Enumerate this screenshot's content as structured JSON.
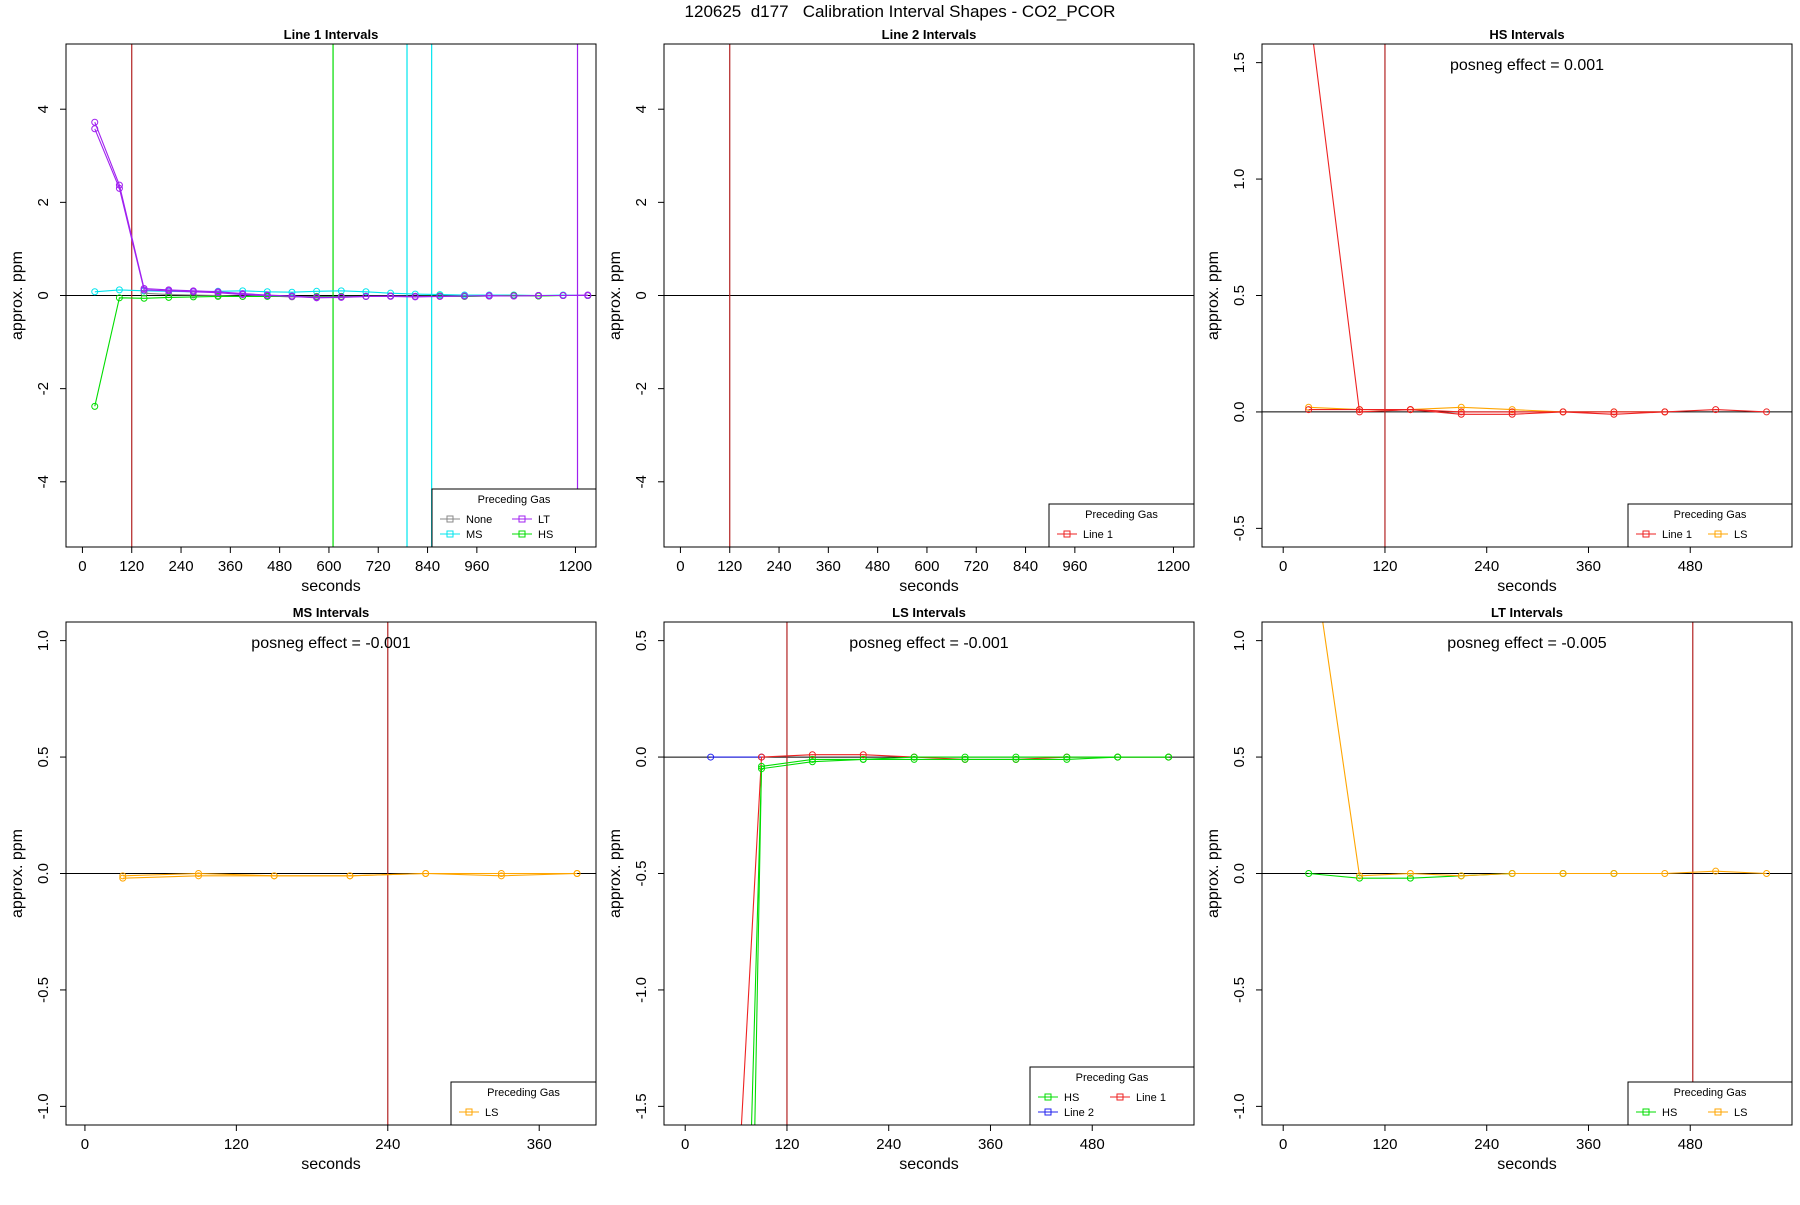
{
  "figure": {
    "title": "120625  d177   Calibration Interval Shapes - CO2_PCOR",
    "colors": {
      "None": "#888888",
      "LT": "#a020f0",
      "MS": "#00e5ee",
      "HS": "#00dd00",
      "Line 1": "#ee2222",
      "Line 2": "#2222ee",
      "LS": "#ffa500",
      "marker_line": "#b22222",
      "axis": "#000000"
    }
  },
  "chart_data": [
    {
      "type": "line",
      "title": "Line 1 Intervals",
      "xlabel": "seconds",
      "ylabel": "approx. ppm",
      "xlim": [
        -40,
        1250
      ],
      "ylim": [
        -5.4,
        5.4
      ],
      "xticks": [
        0,
        120,
        240,
        360,
        480,
        600,
        720,
        840,
        960,
        1200
      ],
      "yticks": [
        -4,
        -2,
        0,
        2,
        4
      ],
      "annotation": "",
      "vlines": [
        {
          "x": 120,
          "color": "#b22222"
        },
        {
          "x": 610,
          "color": "#00dd00"
        },
        {
          "x": 790,
          "color": "#00e5ee"
        },
        {
          "x": 850,
          "color": "#00e5ee"
        },
        {
          "x": 1205,
          "color": "#a020f0"
        }
      ],
      "legend": {
        "title": "Preceding Gas",
        "placement": "bottom-right",
        "cols": 2,
        "entries": [
          "None",
          "LT",
          "MS",
          "HS"
        ]
      },
      "series": [
        {
          "name": "MS",
          "x": [
            30,
            90,
            150,
            210,
            270,
            330,
            390,
            450,
            510,
            570,
            630,
            690,
            750,
            810,
            870,
            930,
            990,
            1050,
            1110,
            1170,
            1230
          ],
          "values": [
            0.08,
            0.12,
            0.1,
            0.09,
            0.08,
            0.09,
            0.1,
            0.08,
            0.07,
            0.09,
            0.1,
            0.08,
            0.05,
            0.03,
            0.02,
            0.01,
            0.01,
            0.01,
            0.0,
            0.01,
            0.0
          ]
        },
        {
          "name": "None",
          "x": [
            150,
            210,
            270,
            330,
            390,
            450,
            510,
            570,
            630,
            690,
            750,
            810,
            870,
            930,
            990,
            1050,
            1110,
            1170,
            1230
          ],
          "values": [
            0.05,
            0.02,
            0.01,
            0.0,
            -0.02,
            -0.01,
            -0.03,
            -0.02,
            -0.03,
            -0.02,
            -0.01,
            -0.02,
            -0.01,
            -0.02,
            -0.01,
            0.0,
            -0.01,
            0.0,
            0.0
          ]
        },
        {
          "name": "HS",
          "x": [
            30,
            90,
            150,
            210,
            270,
            330,
            390,
            450,
            510,
            570,
            630,
            690,
            750,
            810,
            870,
            930,
            990,
            1050,
            1110,
            1170,
            1230
          ],
          "values": [
            -2.38,
            -0.05,
            -0.06,
            -0.04,
            -0.03,
            -0.02,
            -0.02,
            -0.02,
            -0.02,
            -0.03,
            -0.02,
            -0.02,
            -0.01,
            -0.02,
            -0.01,
            -0.02,
            -0.01,
            0.0,
            -0.01,
            0.0,
            0.0
          ]
        },
        {
          "name": "LT",
          "x": [
            30,
            90,
            150,
            210,
            270,
            330,
            390,
            450,
            510,
            570,
            630,
            690,
            750,
            810,
            870,
            930,
            990,
            1050,
            1110,
            1170,
            1230
          ],
          "values": [
            3.72,
            2.37,
            0.15,
            0.12,
            0.1,
            0.08,
            0.04,
            0.01,
            -0.01,
            -0.04,
            -0.03,
            -0.02,
            -0.01,
            -0.02,
            -0.02,
            -0.01,
            0.0,
            -0.01,
            0.0,
            0.0,
            0.01
          ]
        },
        {
          "name": "LT",
          "x": [
            30,
            90,
            150,
            210,
            270,
            330,
            390,
            450,
            510,
            570,
            630,
            690,
            750,
            810,
            870,
            930,
            990,
            1050,
            1110,
            1170,
            1230
          ],
          "values": [
            3.58,
            2.3,
            0.12,
            0.1,
            0.08,
            0.06,
            0.02,
            0.0,
            -0.02,
            -0.05,
            -0.04,
            -0.02,
            -0.02,
            -0.03,
            -0.02,
            -0.01,
            -0.01,
            -0.01,
            0.0,
            0.0,
            0.0
          ]
        }
      ]
    },
    {
      "type": "line",
      "title": "Line 2 Intervals",
      "xlabel": "seconds",
      "ylabel": "approx. ppm",
      "xlim": [
        -40,
        1250
      ],
      "ylim": [
        -5.4,
        5.4
      ],
      "xticks": [
        0,
        120,
        240,
        360,
        480,
        600,
        720,
        840,
        960,
        1200
      ],
      "yticks": [
        -4,
        -2,
        0,
        2,
        4
      ],
      "annotation": "",
      "vlines": [
        {
          "x": 120,
          "color": "#b22222"
        }
      ],
      "legend": {
        "title": "Preceding Gas",
        "placement": "bottom-right",
        "cols": 1,
        "entries": [
          "Line 1"
        ]
      },
      "series": []
    },
    {
      "type": "line",
      "title": "HS Intervals",
      "xlabel": "seconds",
      "ylabel": "approx. ppm",
      "xlim": [
        -25,
        600
      ],
      "ylim": [
        -0.58,
        1.58
      ],
      "xticks": [
        0,
        120,
        240,
        360,
        480
      ],
      "yticks": [
        -0.5,
        0.0,
        0.5,
        1.0,
        1.5
      ],
      "annotation": "posneg effect = 0.001",
      "vlines": [
        {
          "x": 120,
          "color": "#b22222"
        }
      ],
      "legend": {
        "title": "Preceding Gas",
        "placement": "bottom-right",
        "cols": 2,
        "entries": [
          "Line 1",
          "LS"
        ]
      },
      "series": [
        {
          "name": "LS",
          "x": [
            30,
            90,
            150,
            210,
            270,
            330,
            390,
            450
          ],
          "values": [
            0.02,
            0.01,
            0.01,
            0.02,
            0.01,
            0.0,
            0.0,
            0.0
          ]
        },
        {
          "name": "Line 1",
          "x": [
            30,
            90,
            150,
            210,
            270,
            330,
            390,
            450,
            510,
            570
          ],
          "values": [
            1.75,
            0.0,
            0.01,
            -0.01,
            -0.01,
            0.0,
            -0.01,
            0.0,
            0.01,
            0.0
          ]
        },
        {
          "name": "Line 1",
          "x": [
            30,
            90,
            150,
            210,
            270,
            330,
            390,
            450
          ],
          "values": [
            0.01,
            0.01,
            0.01,
            0.0,
            0.0,
            0.0,
            0.0,
            0.0
          ]
        }
      ]
    },
    {
      "type": "line",
      "title": "MS Intervals",
      "xlabel": "seconds",
      "ylabel": "approx. ppm",
      "xlim": [
        -15,
        405
      ],
      "ylim": [
        -1.08,
        1.08
      ],
      "xticks": [
        0,
        120,
        240,
        360
      ],
      "yticks": [
        -1.0,
        -0.5,
        0.0,
        0.5,
        1.0
      ],
      "annotation": "posneg effect = -0.001",
      "vlines": [
        {
          "x": 240,
          "color": "#b22222"
        }
      ],
      "legend": {
        "title": "Preceding Gas",
        "placement": "bottom-right",
        "cols": 1,
        "entries": [
          "LS"
        ]
      },
      "series": [
        {
          "name": "LS",
          "x": [
            30,
            90,
            150,
            210,
            270,
            330,
            390
          ],
          "values": [
            -0.02,
            -0.01,
            -0.01,
            -0.01,
            0.0,
            0.0,
            0.0
          ]
        },
        {
          "name": "LS",
          "x": [
            30,
            90,
            150,
            210,
            270,
            330,
            390
          ],
          "values": [
            -0.01,
            0.0,
            -0.01,
            -0.01,
            0.0,
            -0.01,
            0.0
          ]
        }
      ]
    },
    {
      "type": "line",
      "title": "LS Intervals",
      "xlabel": "seconds",
      "ylabel": "approx. ppm",
      "xlim": [
        -25,
        600
      ],
      "ylim": [
        -1.58,
        0.58
      ],
      "xticks": [
        0,
        120,
        240,
        360,
        480
      ],
      "yticks": [
        -1.5,
        -1.0,
        -0.5,
        0.0,
        0.5
      ],
      "annotation": "posneg effect = -0.001",
      "vlines": [
        {
          "x": 120,
          "color": "#b22222"
        }
      ],
      "legend": {
        "title": "Preceding Gas",
        "placement": "bottom-right",
        "cols": 2,
        "entries": [
          "HS",
          "Line 1",
          "Line 2"
        ]
      },
      "series": [
        {
          "name": "Line 2",
          "x": [
            30,
            90
          ],
          "values": [
            0.0,
            0.0
          ]
        },
        {
          "name": "Line 1",
          "x": [
            60,
            90,
            150,
            210,
            270,
            330,
            390,
            450,
            510,
            570
          ],
          "values": [
            -2.0,
            0.0,
            0.01,
            0.01,
            0.0,
            -0.01,
            -0.01,
            0.0,
            0.0,
            0.0
          ]
        },
        {
          "name": "HS",
          "x": [
            75,
            90,
            150,
            210,
            270,
            330,
            390,
            450,
            510,
            570
          ],
          "values": [
            -2.0,
            -0.05,
            -0.02,
            -0.01,
            -0.01,
            -0.01,
            -0.01,
            -0.01,
            0.0,
            0.0
          ]
        },
        {
          "name": "HS",
          "x": [
            80,
            90,
            150,
            210,
            270,
            330,
            390,
            450,
            510,
            570
          ],
          "values": [
            -2.0,
            -0.04,
            -0.01,
            -0.01,
            0.0,
            0.0,
            0.0,
            0.0,
            0.0,
            0.0
          ]
        }
      ]
    },
    {
      "type": "line",
      "title": "LT Intervals",
      "xlabel": "seconds",
      "ylabel": "approx. ppm",
      "xlim": [
        -25,
        600
      ],
      "ylim": [
        -1.08,
        1.08
      ],
      "xticks": [
        0,
        120,
        240,
        360,
        480
      ],
      "yticks": [
        -1.0,
        -0.5,
        0.0,
        0.5,
        1.0
      ],
      "annotation": "posneg effect = -0.005",
      "vlines": [
        {
          "x": 483,
          "color": "#b22222"
        }
      ],
      "legend": {
        "title": "Preceding Gas",
        "placement": "bottom-right",
        "cols": 2,
        "entries": [
          "HS",
          "LS"
        ]
      },
      "series": [
        {
          "name": "HS",
          "x": [
            30,
            90,
            150,
            210,
            270,
            330,
            390
          ],
          "values": [
            0.0,
            -0.02,
            -0.02,
            -0.01,
            0.0,
            0.0,
            0.0
          ]
        },
        {
          "name": "LS",
          "x": [
            30,
            90,
            150,
            210,
            270,
            330,
            390,
            450,
            510,
            570
          ],
          "values": [
            1.5,
            -0.01,
            0.0,
            -0.01,
            0.0,
            0.0,
            0.0,
            0.0,
            0.01,
            0.0
          ]
        }
      ]
    }
  ]
}
